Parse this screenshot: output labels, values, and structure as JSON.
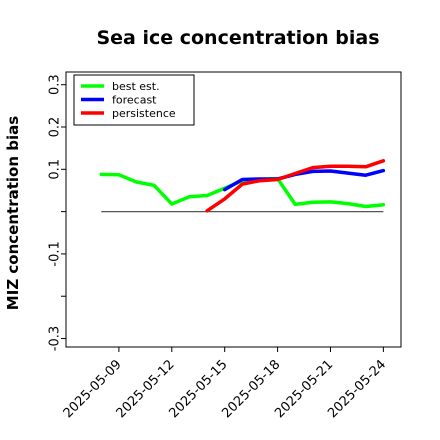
{
  "chart_data": {
    "type": "line",
    "title": "Sea ice concentration bias",
    "ylabel": "MIZ concentration bias",
    "xlabel": "",
    "ylim": [
      -0.32,
      0.33
    ],
    "xlim": [
      "2025-05-06",
      "2025-05-25"
    ],
    "yticks": [
      -0.3,
      -0.1,
      0.1,
      0.2,
      0.3
    ],
    "yticks_unlabeled": [
      -0.2,
      0.0
    ],
    "xticks": [
      "2025-05-09",
      "2025-05-12",
      "2025-05-15",
      "2025-05-18",
      "2025-05-21",
      "2025-05-24"
    ],
    "xtick_colors": [
      "#000000",
      "#000000",
      "#228b22",
      "#000000",
      "#000000",
      "#000000"
    ],
    "zero_line": true,
    "legend": {
      "placement": "top-left"
    },
    "series": [
      {
        "name": "best est.",
        "color": "#00ff00",
        "x": [
          "2025-05-08",
          "2025-05-09",
          "2025-05-10",
          "2025-05-11",
          "2025-05-12",
          "2025-05-13",
          "2025-05-14",
          "2025-05-15",
          "2025-05-16",
          "2025-05-17",
          "2025-05-18",
          "2025-05-19",
          "2025-05-20",
          "2025-05-21",
          "2025-05-22",
          "2025-05-23",
          "2025-05-24"
        ],
        "y": [
          0.088,
          0.087,
          0.07,
          0.062,
          0.018,
          0.035,
          0.038,
          0.055,
          0.073,
          0.076,
          0.078,
          0.017,
          0.022,
          0.023,
          0.019,
          0.012,
          0.016
        ]
      },
      {
        "name": "forecast",
        "color": "#0000ff",
        "x": [
          "2025-05-15",
          "2025-05-16",
          "2025-05-17",
          "2025-05-18",
          "2025-05-19",
          "2025-05-20",
          "2025-05-21",
          "2025-05-22",
          "2025-05-23",
          "2025-05-24"
        ],
        "y": [
          0.052,
          0.076,
          0.077,
          0.077,
          0.088,
          0.095,
          0.096,
          0.091,
          0.086,
          0.097
        ]
      },
      {
        "name": "persistence",
        "color": "#ff0000",
        "x": [
          "2025-05-14",
          "2025-05-15",
          "2025-05-16",
          "2025-05-17",
          "2025-05-18",
          "2025-05-19",
          "2025-05-20",
          "2025-05-21",
          "2025-05-22",
          "2025-05-23",
          "2025-05-24"
        ],
        "y": [
          0.002,
          0.03,
          0.065,
          0.073,
          0.076,
          0.09,
          0.104,
          0.107,
          0.107,
          0.106,
          0.12
        ]
      }
    ]
  }
}
